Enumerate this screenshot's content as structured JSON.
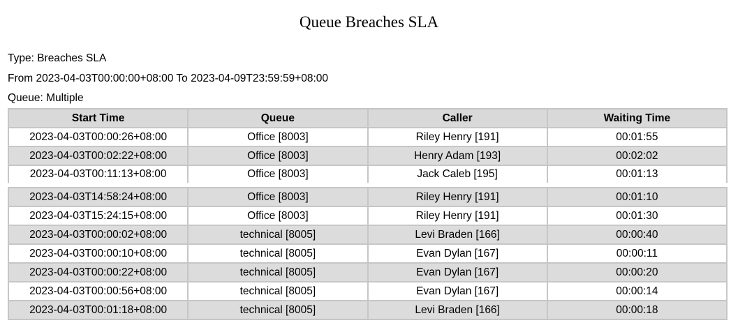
{
  "title": "Queue Breaches SLA",
  "info": {
    "type": "Type: Breaches SLA",
    "range": "From 2023-04-03T00:00:00+08:00 To 2023-04-09T23:59:59+08:00",
    "queue": "Queue: Multiple"
  },
  "table": {
    "headers": [
      "Start Time",
      "Queue",
      "Caller",
      "Waiting Time"
    ],
    "rows": [
      [
        "2023-04-03T00:00:26+08:00",
        "Office [8003]",
        "Riley Henry [191]",
        "00:01:55"
      ],
      [
        "2023-04-03T00:02:22+08:00",
        "Office [8003]",
        "Henry Adam [193]",
        "00:02:02"
      ],
      [
        "2023-04-03T00:11:13+08:00",
        "Office [8003]",
        "Jack Caleb [195]",
        "00:01:13"
      ],
      [
        "2023-04-03T14:58:24+08:00",
        "Office [8003]",
        "Riley Henry [191]",
        "00:01:10"
      ],
      [
        "2023-04-03T15:24:15+08:00",
        "Office [8003]",
        "Riley Henry [191]",
        "00:01:30"
      ],
      [
        "2023-04-03T00:00:02+08:00",
        "technical [8005]",
        "Levi Braden [166]",
        "00:00:40"
      ],
      [
        "2023-04-03T00:00:10+08:00",
        "technical [8005]",
        "Evan Dylan [167]",
        "00:00:11"
      ],
      [
        "2023-04-03T00:00:22+08:00",
        "technical [8005]",
        "Evan Dylan [167]",
        "00:00:20"
      ],
      [
        "2023-04-03T00:00:56+08:00",
        "technical [8005]",
        "Evan Dylan [167]",
        "00:00:14"
      ],
      [
        "2023-04-03T00:01:18+08:00",
        "technical [8005]",
        "Levi Braden [166]",
        "00:00:18"
      ]
    ]
  }
}
